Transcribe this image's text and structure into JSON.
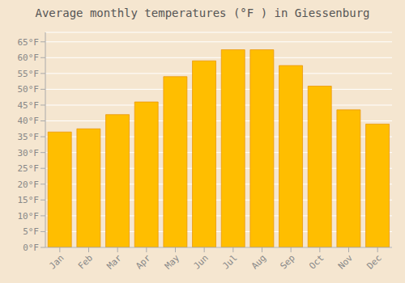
{
  "chart_data": {
    "type": "bar",
    "title": "Average monthly temperatures (°F ) in Giessenburg",
    "categories": [
      "Jan",
      "Feb",
      "Mar",
      "Apr",
      "May",
      "Jun",
      "Jul",
      "Aug",
      "Sep",
      "Oct",
      "Nov",
      "Dec"
    ],
    "values": [
      36.5,
      37.5,
      42.0,
      46.0,
      54.0,
      59.0,
      62.5,
      62.5,
      57.5,
      51.0,
      43.5,
      39.0
    ],
    "color": "#FFBE00",
    "ylim": [
      0,
      68
    ],
    "yticks": [
      {
        "value": 0,
        "label": "0°F"
      },
      {
        "value": 5,
        "label": "5°F"
      },
      {
        "value": 10,
        "label": "10°F"
      },
      {
        "value": 15,
        "label": "15°F"
      },
      {
        "value": 20,
        "label": "20°F"
      },
      {
        "value": 25,
        "label": "25°F"
      },
      {
        "value": 30,
        "label": "30°F"
      },
      {
        "value": 35,
        "label": "35°F"
      },
      {
        "value": 40,
        "label": "40°F"
      },
      {
        "value": 45,
        "label": "45°F"
      },
      {
        "value": 50,
        "label": "50°F"
      },
      {
        "value": 55,
        "label": "55°F"
      },
      {
        "value": 60,
        "label": "60°F"
      },
      {
        "value": 65,
        "label": "65°F"
      }
    ],
    "grid": true
  }
}
